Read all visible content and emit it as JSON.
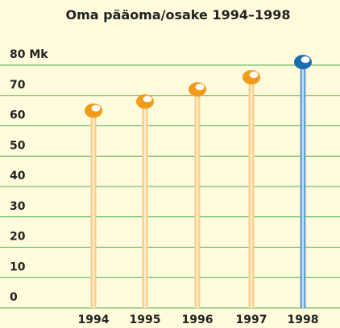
{
  "chart_data": {
    "type": "lollipop",
    "title": "Oma pääoma/osake 1994–1998",
    "categories": [
      "1994",
      "1995",
      "1996",
      "1997",
      "1998"
    ],
    "values": [
      65,
      68,
      72,
      76,
      81
    ],
    "colors": [
      "#f29a1a",
      "#f29a1a",
      "#f29a1a",
      "#f29a1a",
      "#1b6cb3"
    ],
    "ylim": [
      0,
      85
    ],
    "yticks": [
      0,
      10,
      20,
      30,
      40,
      50,
      60,
      70,
      {
        "value": 80,
        "label": "80 Mk"
      }
    ],
    "grid": true
  }
}
